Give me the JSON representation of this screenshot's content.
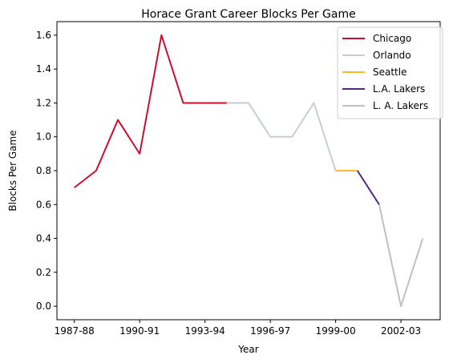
{
  "chart_data": {
    "type": "line",
    "title": "Horace Grant Career Blocks Per Game",
    "xlabel": "Year",
    "ylabel": "Blocks Per Game",
    "x_tick_labels": [
      "1987-88",
      "1990-91",
      "1993-94",
      "1996-97",
      "1999-00",
      "2002-03"
    ],
    "x_tick_indices": [
      0,
      3,
      6,
      9,
      12,
      15
    ],
    "y_ticks": [
      "0.0",
      "0.2",
      "0.4",
      "0.6",
      "0.8",
      "1.0",
      "1.2",
      "1.4",
      "1.6"
    ],
    "ylim": [
      -0.08,
      1.68
    ],
    "xlim": [
      -0.8,
      16.8
    ],
    "legend_position": "top-right",
    "series": [
      {
        "name": "Chicago",
        "color": "#C8102E",
        "x": [
          0,
          1,
          2,
          3,
          4,
          5,
          6,
          7
        ],
        "values": [
          0.7,
          0.8,
          1.1,
          0.9,
          1.6,
          1.2,
          1.2,
          1.2
        ]
      },
      {
        "name": "Orlando",
        "color": "#C4CED4",
        "x": [
          7,
          8,
          9,
          10,
          11,
          12
        ],
        "values": [
          1.2,
          1.2,
          1.0,
          1.0,
          1.2,
          0.8
        ]
      },
      {
        "name": "Seattle",
        "color": "#FDB927",
        "x": [
          12,
          13
        ],
        "values": [
          0.8,
          0.8
        ]
      },
      {
        "name": "L.A. Lakers",
        "color": "#552583",
        "x": [
          13,
          14
        ],
        "values": [
          0.8,
          0.6
        ]
      },
      {
        "name": "L. A. Lakers",
        "color": "#BEC0C2",
        "x": [
          14,
          15,
          16
        ],
        "values": [
          0.6,
          0.0,
          0.4
        ]
      }
    ]
  }
}
